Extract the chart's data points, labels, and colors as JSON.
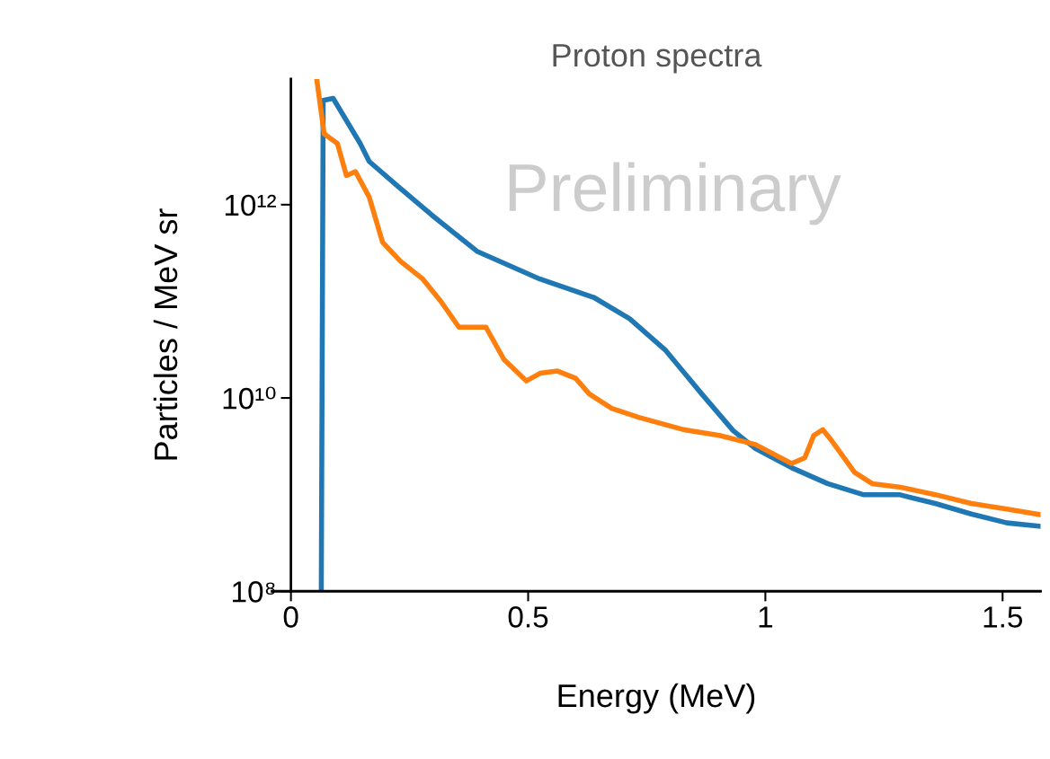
{
  "chart_data": {
    "type": "line",
    "title": "Proton spectra",
    "xlabel": "Energy (MeV)",
    "ylabel": "Particles / MeV sr",
    "annotations": [
      "Preliminary"
    ],
    "log": true,
    "xlim": [
      -0.04,
      1.58
    ],
    "xticks": [
      0,
      0.5,
      1,
      1.5
    ],
    "ylim": [
      100000000.0,
      20000000000000.0
    ],
    "yticks": [
      {
        "value": 100000000.0,
        "label": "10⁸"
      },
      {
        "value": 10000000000.0,
        "label": "10¹⁰"
      },
      {
        "value": 1000000000000.0,
        "label": "10¹²"
      }
    ],
    "grid": false,
    "legend": false,
    "series": [
      {
        "color": "#1f77b4",
        "x": [
          0.064,
          0.068,
          0.089,
          0.146,
          0.165,
          0.222,
          0.297,
          0.392,
          0.525,
          0.638,
          0.714,
          0.79,
          0.866,
          0.932,
          0.979,
          1.055,
          1.131,
          1.206,
          1.282,
          1.358,
          1.434,
          1.509,
          1.58
        ],
        "values": [
          100000000.0,
          12000000000000.0,
          12600000000000.0,
          4300000000000.0,
          2800000000000.0,
          1600000000000.0,
          780000000000.0,
          330000000000.0,
          170000000000.0,
          110000000000.0,
          66000000000.0,
          31000000000.0,
          11000000000.0,
          4600000000.0,
          3000000000.0,
          1900000000.0,
          1300000000.0,
          1000000000.0,
          1000000000.0,
          810000000.0,
          630000000.0,
          510000000.0,
          470000000.0
        ]
      },
      {
        "color": "#ff7f0e",
        "x": [
          0.055,
          0.07,
          0.098,
          0.117,
          0.136,
          0.165,
          0.193,
          0.231,
          0.278,
          0.316,
          0.354,
          0.411,
          0.449,
          0.496,
          0.525,
          0.562,
          0.6,
          0.629,
          0.676,
          0.733,
          0.828,
          0.903,
          0.979,
          1.055,
          1.083,
          1.102,
          1.121,
          1.14,
          1.188,
          1.225,
          1.282,
          1.358,
          1.434,
          1.509,
          1.58
        ],
        "values": [
          19000000000000.0,
          5400000000000.0,
          4300000000000.0,
          2000000000000.0,
          2200000000000.0,
          1200000000000.0,
          410000000000.0,
          260000000000.0,
          170000000000.0,
          100000000000.0,
          54000000000.0,
          54000000000.0,
          25000000000.0,
          15000000000.0,
          18000000000.0,
          19000000000.0,
          16000000000.0,
          11000000000.0,
          7800000000.0,
          6300000000.0,
          4700000000.0,
          4100000000.0,
          3300000000.0,
          2100000000.0,
          2400000000.0,
          4100000000.0,
          4700000000.0,
          3600000000.0,
          1700000000.0,
          1300000000.0,
          1200000000.0,
          1000000000.0,
          810000000.0,
          710000000.0,
          620000000.0
        ]
      }
    ]
  }
}
